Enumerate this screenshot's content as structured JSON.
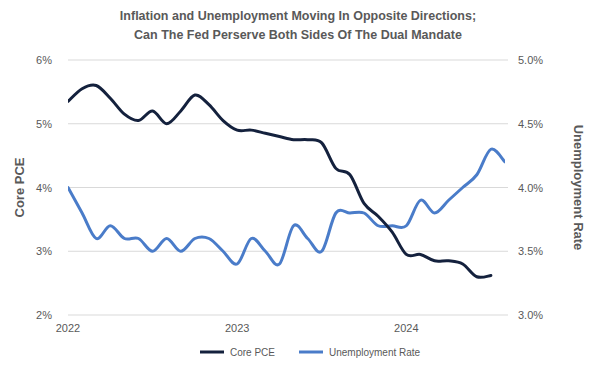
{
  "chart_data": {
    "type": "line",
    "title": "Inflation and Unemployment Moving In Opposite Directions;\nCan The Fed Perserve Both Sides Of The Dual Mandate",
    "y_label": "Core PCE",
    "y2_label": "Unemployment Rate",
    "categories": [
      "2022",
      null,
      null,
      null,
      null,
      null,
      null,
      null,
      null,
      null,
      null,
      null,
      "2023",
      null,
      null,
      null,
      null,
      null,
      null,
      null,
      null,
      null,
      null,
      null,
      "2024",
      null,
      null,
      null,
      null,
      null,
      null,
      null
    ],
    "series": [
      {
        "name": "Core PCE",
        "color": "#14213d",
        "values": [
          5.35,
          5.55,
          5.6,
          5.4,
          5.15,
          5.05,
          5.2,
          5.0,
          5.2,
          5.45,
          5.3,
          5.05,
          4.9,
          4.9,
          4.85,
          4.8,
          4.75,
          4.75,
          4.7,
          4.3,
          4.2,
          3.75,
          3.55,
          3.3,
          2.95,
          2.95,
          2.85,
          2.85,
          2.8,
          2.6,
          2.62,
          null
        ]
      },
      {
        "name": "Unemployment Rate",
        "color": "#4a7cc9",
        "axis": "y2",
        "values": [
          4.0,
          3.8,
          3.6,
          3.7,
          3.6,
          3.6,
          3.5,
          3.6,
          3.5,
          3.6,
          3.6,
          3.5,
          3.4,
          3.6,
          3.5,
          3.4,
          3.7,
          3.6,
          3.5,
          3.8,
          3.8,
          3.8,
          3.7,
          3.7,
          3.7,
          3.9,
          3.8,
          3.9,
          4.0,
          4.1,
          4.3,
          4.2
        ]
      }
    ],
    "ylim": [
      2,
      6
    ],
    "yticks": [
      {
        "value": 2,
        "label": "2%"
      },
      {
        "value": 3,
        "label": "3%"
      },
      {
        "value": 4,
        "label": "4%"
      },
      {
        "value": 5,
        "label": "5%"
      },
      {
        "value": 6,
        "label": "6%"
      }
    ],
    "y2lim": [
      3,
      5
    ],
    "y2ticks": [
      {
        "value": 3,
        "label": "3.0%"
      },
      {
        "value": 3.5,
        "label": "3.5%"
      },
      {
        "value": 4,
        "label": "4.0%"
      },
      {
        "value": 4.5,
        "label": "4.5%"
      },
      {
        "value": 5,
        "label": "5.0%"
      }
    ],
    "grid": true,
    "legend": "bottom"
  }
}
